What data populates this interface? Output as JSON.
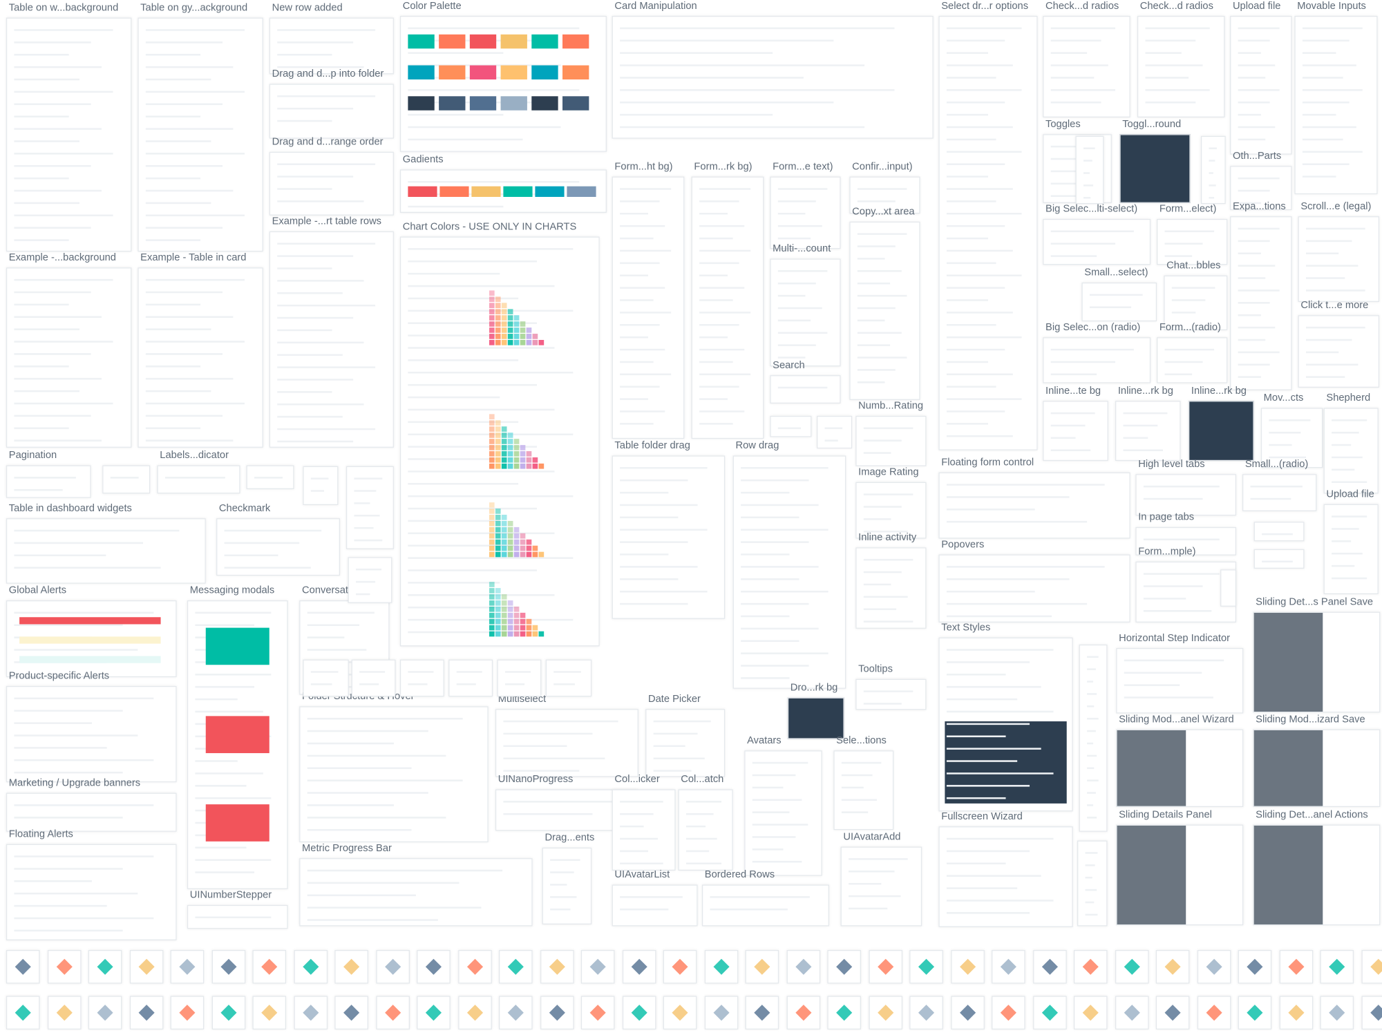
{
  "frames": [
    "Table on w...background",
    "Table on gy...ackground",
    "New row added",
    "Color Palette",
    "Card Manipulation",
    "Select dr...r options",
    "Check...d radios",
    "Check...d radios",
    "Upload file",
    "Movable Inputs",
    "Drag and d...p into folder",
    "Drag and d...range order",
    "Gadients",
    "Toggles",
    "Toggl...round",
    "Oth...Parts",
    "Form...ht bg)",
    "Form...rk bg)",
    "Form...e text)",
    "Confir...input)",
    "Example -...rt table rows",
    "Chart Colors - USE ONLY IN CHARTS",
    "Big Selec...lti-select)",
    "Form...elect)",
    "Expa...tions",
    "Scroll...e (legal)",
    "Copy...xt area",
    "Example -...background",
    "Example - Table in card",
    "Multi-...count",
    "Small...select)",
    "Chat...bbles",
    "Click t...e more",
    "Big Selec...on (radio)",
    "Form...(radio)",
    "Search",
    "Numb...Rating",
    "Inline...te bg",
    "Inline...rk bg",
    "Inline...rk bg",
    "Mov...cts",
    "Shepherd",
    "Table folder drag",
    "Row drag",
    "Floating form control",
    "High level tabs",
    "Small...(radio)",
    "Pagination",
    "Labels...dicator",
    "Image Rating",
    "Upload file",
    "Table in dashboard widgets",
    "Checkmark",
    "In page tabs",
    "Inline activity",
    "Popovers",
    "Form...mple)",
    "Global Alerts",
    "Messaging modals",
    "Conversational",
    "Sliding Det...s Panel Save",
    "Text Styles",
    "Horizontal Step Indicator",
    "Tooltips",
    "Product-specific Alerts",
    "Dro...rk bg",
    "Folder Structure & Hover",
    "Multiselect",
    "Date Picker",
    "Sliding Mod...anel Wizard",
    "Sliding Mod...izard Save",
    "Avatars",
    "Sele...tions",
    "Marketing / Upgrade banners",
    "UINanoProgress",
    "Col...icker",
    "Col...atch",
    "Sliding Details Panel",
    "Sliding Det...anel Actions",
    "Fullscreen Wizard",
    "Floating Alerts",
    "UIAvatarAdd",
    "Drag...ents",
    "Metric Progress Bar",
    "UIAvatarList",
    "Bordered Rows",
    "UINumberStepper"
  ]
}
